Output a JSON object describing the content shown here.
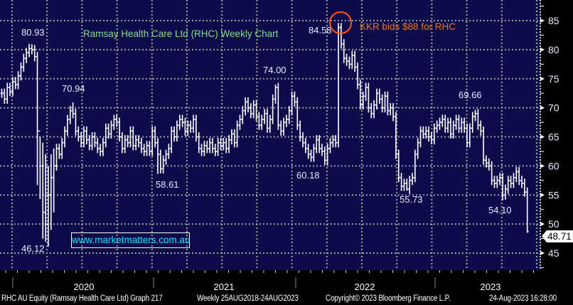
{
  "chart_data": {
    "type": "ohlc-bar",
    "title": "Ramsay Health Care Ltd (RHC) Weekly Chart",
    "annotation": "KKR bids $88 for RHC",
    "watermark": "www.marketmatters.com.au",
    "y_ticks": [
      45,
      50,
      55,
      60,
      65,
      70,
      75,
      80,
      85
    ],
    "ylim": [
      42.5,
      88.5
    ],
    "x_ticks": [
      "2020",
      "2021",
      "2022",
      "2023"
    ],
    "last_price": "48.71",
    "bar_range_pad": 0.8,
    "close": [
      72.5,
      71.5,
      73.5,
      72.8,
      74.5,
      74.0,
      75.5,
      77.0,
      78.5,
      79.5,
      80.2,
      80.0,
      78.8,
      66.0,
      60.0,
      52.0,
      50.0,
      55.0,
      58.0,
      60.0,
      63,
      62,
      64,
      66,
      68,
      69.5,
      69,
      66,
      65,
      64,
      66,
      64.5,
      63.5,
      65,
      64,
      63,
      62.5,
      64,
      66.5,
      65.5,
      67,
      68,
      67.5,
      65,
      63,
      64.5,
      64,
      66,
      63.5,
      64.5,
      64,
      63,
      62.5,
      63.5,
      62.5,
      66,
      64,
      62,
      59.5,
      61,
      62,
      63,
      66,
      65,
      67,
      68,
      67.5,
      66,
      67,
      66.5,
      68,
      65,
      63,
      62.5,
      63.5,
      63,
      64,
      63,
      62.5,
      64,
      63.5,
      64,
      63,
      64.5,
      65.5,
      64,
      67,
      68,
      69.5,
      71,
      70,
      69,
      70.5,
      68.5,
      67,
      68,
      69,
      66.5,
      68,
      71.5,
      73.5,
      67,
      66,
      67.5,
      68,
      69.5,
      72,
      71,
      67,
      65,
      64,
      63,
      62,
      61.5,
      63,
      64.5,
      63,
      62.5,
      61,
      63,
      64,
      64.5,
      64,
      83.8,
      81,
      78.5,
      78,
      77.5,
      79,
      77,
      74,
      70.5,
      72,
      73.5,
      70,
      69,
      70.5,
      72.5,
      71.5,
      70,
      72,
      69.5,
      70,
      68.5,
      62,
      58,
      56.5,
      57,
      56,
      57.5,
      58,
      62,
      64,
      66,
      65.5,
      66,
      65,
      64.5,
      66.5,
      67,
      67.5,
      68,
      66.5,
      67.5,
      65.5,
      67,
      68,
      66.5,
      67.5,
      66.5,
      64,
      66.5,
      68.5,
      69,
      67,
      66,
      61,
      60.5,
      60,
      57.5,
      57,
      57.5,
      58,
      55,
      56,
      57.5,
      57,
      58,
      59,
      57.5,
      57,
      55.5,
      48.71
    ],
    "extremes": [
      {
        "bar": 11,
        "type": "high",
        "value": 80.93,
        "label": "80.93"
      },
      {
        "bar": 17,
        "type": "low",
        "value": 46.12,
        "label": "46.12"
      },
      {
        "bar": 26,
        "type": "high",
        "value": 70.94,
        "label": "70.94"
      },
      {
        "bar": 57,
        "type": "low",
        "value": 58.61,
        "label": "58.61"
      },
      {
        "bar": 100,
        "type": "high",
        "value": 74.0,
        "label": "74.00"
      },
      {
        "bar": 118,
        "type": "low",
        "value": 60.18,
        "label": "60.18"
      },
      {
        "bar": 123,
        "type": "high",
        "value": 84.58,
        "label": "84.58"
      },
      {
        "bar": 148,
        "type": "low",
        "value": 55.73,
        "label": "55.73"
      },
      {
        "bar": 173,
        "type": "high",
        "value": 69.66,
        "label": "69.66"
      },
      {
        "bar": 183,
        "type": "low",
        "value": 54.1,
        "label": "54.10"
      }
    ],
    "crash_lows": {
      "13": 56.7,
      "14": 54.3,
      "15": 47.5,
      "16": 47.0,
      "18": 49.0,
      "19": 52.0,
      "192": 48.5
    },
    "crash_highs": {
      "14": 65.0,
      "15": 64.0,
      "16": 62.0,
      "17": 60.0,
      "18": 62.0,
      "19": 63.0
    },
    "colors": {
      "background": "#0e0b4a",
      "bars": "#ffffff",
      "title": "#7ee07e",
      "annotation": "#e8731e",
      "circle": "#ff5a0a",
      "grid": "#a0a0a0",
      "watermark": "#19e3ff"
    }
  },
  "footer": {
    "security": "RHC AU Equity (Ramsay Health Care Ltd) Graph 217",
    "range": "Weekly 25AUG2018-24AUG2023",
    "copyright": "Copyright© 2023 Bloomberg Finance L.P.",
    "timestamp": "24-Aug-2023 16:28:00"
  }
}
